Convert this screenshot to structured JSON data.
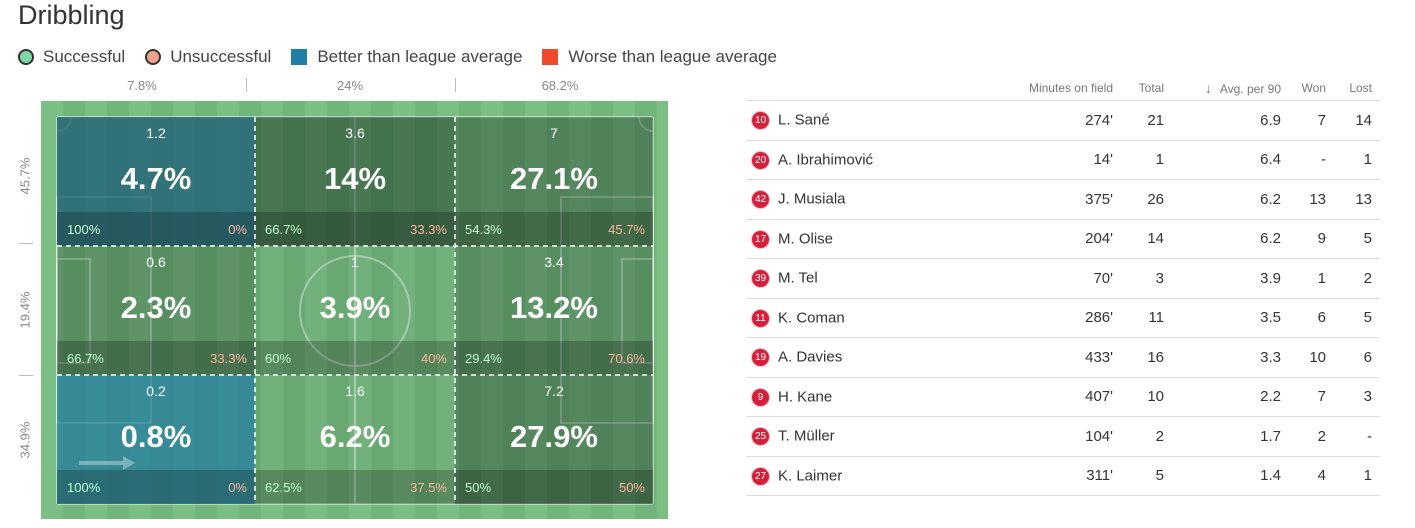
{
  "title": "Dribbling",
  "legend": [
    {
      "label": "Successful",
      "kind": "circle",
      "color": "#7ed9a4"
    },
    {
      "label": "Unsuccessful",
      "kind": "circle",
      "color": "#f0a38a"
    },
    {
      "label": "Better than league average",
      "kind": "square",
      "color": "#1f7fa6"
    },
    {
      "label": "Worse than league average",
      "kind": "square",
      "color": "#ef4a2c"
    }
  ],
  "colors": {
    "better": "#1f7fa6",
    "worse": "#ef4a2c",
    "pitch": "#7cbf85",
    "badge": "#d4203b"
  },
  "column_pcts": [
    "7.8%",
    "24%",
    "68.2%"
  ],
  "row_pcts": [
    "45.7%",
    "19.4%",
    "34.9%"
  ],
  "zones": [
    {
      "avg": "1.2",
      "pct": "4.7%",
      "succ": "100%",
      "uns": "0%",
      "tone": "better"
    },
    {
      "avg": "3.6",
      "pct": "14%",
      "succ": "66.7%",
      "uns": "33.3%",
      "tone": "neutral"
    },
    {
      "avg": "7",
      "pct": "27.1%",
      "succ": "54.3%",
      "uns": "45.7%",
      "tone": "neutral"
    },
    {
      "avg": "0.6",
      "pct": "2.3%",
      "succ": "66.7%",
      "uns": "33.3%",
      "tone": "neutral"
    },
    {
      "avg": "1",
      "pct": "3.9%",
      "succ": "60%",
      "uns": "40%",
      "tone": "neutral"
    },
    {
      "avg": "3.4",
      "pct": "13.2%",
      "succ": "29.4%",
      "uns": "70.6%",
      "tone": "neutral"
    },
    {
      "avg": "0.2",
      "pct": "0.8%",
      "succ": "100%",
      "uns": "0%",
      "tone": "better"
    },
    {
      "avg": "1.6",
      "pct": "6.2%",
      "succ": "62.5%",
      "uns": "37.5%",
      "tone": "neutral"
    },
    {
      "avg": "7.2",
      "pct": "27.9%",
      "succ": "50%",
      "uns": "50%",
      "tone": "neutral"
    }
  ],
  "table": {
    "headers": {
      "minutes": "Minutes on field",
      "total": "Total",
      "avg": "Avg. per 90",
      "sort_arrow": "↓",
      "won": "Won",
      "lost": "Lost"
    },
    "rows": [
      {
        "num": "10",
        "name": "L. Sané",
        "minutes": "274'",
        "total": "21",
        "avg": "6.9",
        "won": "7",
        "lost": "14"
      },
      {
        "num": "20",
        "name": "A. Ibrahimović",
        "minutes": "14'",
        "total": "1",
        "avg": "6.4",
        "won": "-",
        "lost": "1"
      },
      {
        "num": "42",
        "name": "J. Musiala",
        "minutes": "375'",
        "total": "26",
        "avg": "6.2",
        "won": "13",
        "lost": "13"
      },
      {
        "num": "17",
        "name": "M. Olise",
        "minutes": "204'",
        "total": "14",
        "avg": "6.2",
        "won": "9",
        "lost": "5"
      },
      {
        "num": "39",
        "name": "M. Tel",
        "minutes": "70'",
        "total": "3",
        "avg": "3.9",
        "won": "1",
        "lost": "2"
      },
      {
        "num": "11",
        "name": "K. Coman",
        "minutes": "286'",
        "total": "11",
        "avg": "3.5",
        "won": "6",
        "lost": "5"
      },
      {
        "num": "19",
        "name": "A. Davies",
        "minutes": "433'",
        "total": "16",
        "avg": "3.3",
        "won": "10",
        "lost": "6"
      },
      {
        "num": "9",
        "name": "H. Kane",
        "minutes": "407'",
        "total": "10",
        "avg": "2.2",
        "won": "7",
        "lost": "3"
      },
      {
        "num": "25",
        "name": "T. Müller",
        "minutes": "104'",
        "total": "2",
        "avg": "1.7",
        "won": "2",
        "lost": "-"
      },
      {
        "num": "27",
        "name": "K. Laimer",
        "minutes": "311'",
        "total": "5",
        "avg": "1.4",
        "won": "4",
        "lost": "1"
      }
    ]
  }
}
